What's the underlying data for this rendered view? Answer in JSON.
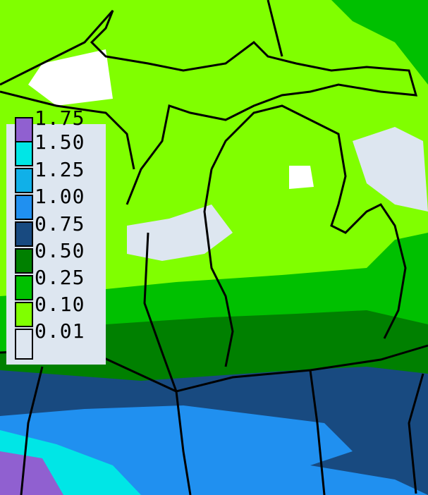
{
  "legend": {
    "items": [
      {
        "label": "1.75",
        "color": "#9060d0"
      },
      {
        "label": "1.50",
        "color": "#00e6e6"
      },
      {
        "label": "1.25",
        "color": "#10b0e8"
      },
      {
        "label": "1.00",
        "color": "#2090f0"
      },
      {
        "label": "0.75",
        "color": "#184a80"
      },
      {
        "label": "0.50",
        "color": "#008000"
      },
      {
        "label": "0.25",
        "color": "#00c000"
      },
      {
        "label": "0.10",
        "color": "#80ff00"
      },
      {
        "label": "0.01",
        "color": "#dde6f0"
      }
    ]
  }
}
